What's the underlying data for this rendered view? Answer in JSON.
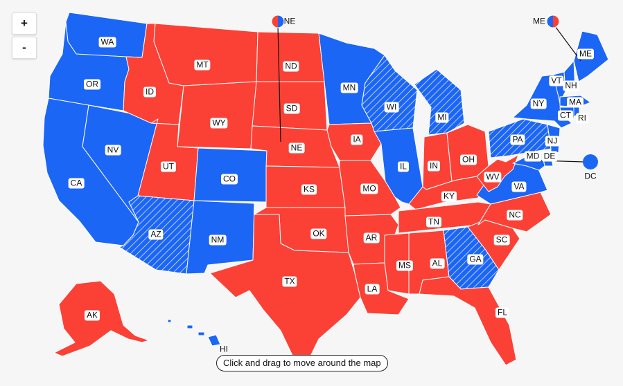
{
  "controls": {
    "zoom_in": "+",
    "zoom_out": "-"
  },
  "hint": "Click and drag to move around the map",
  "colors": {
    "dem": "#1c66f6",
    "rep": "#fb4136",
    "border": "#ffffff",
    "background": "#f6f6f6"
  },
  "states": [
    {
      "id": "WA",
      "party": "dem"
    },
    {
      "id": "OR",
      "party": "dem"
    },
    {
      "id": "CA",
      "party": "dem"
    },
    {
      "id": "NV",
      "party": "dem"
    },
    {
      "id": "ID",
      "party": "rep"
    },
    {
      "id": "MT",
      "party": "rep"
    },
    {
      "id": "WY",
      "party": "rep"
    },
    {
      "id": "UT",
      "party": "rep"
    },
    {
      "id": "CO",
      "party": "dem"
    },
    {
      "id": "AZ",
      "party": "dem",
      "hatched": true
    },
    {
      "id": "NM",
      "party": "dem"
    },
    {
      "id": "ND",
      "party": "rep"
    },
    {
      "id": "SD",
      "party": "rep"
    },
    {
      "id": "NE",
      "party": "rep"
    },
    {
      "id": "KS",
      "party": "rep"
    },
    {
      "id": "OK",
      "party": "rep"
    },
    {
      "id": "TX",
      "party": "rep"
    },
    {
      "id": "MN",
      "party": "dem"
    },
    {
      "id": "IA",
      "party": "rep"
    },
    {
      "id": "MO",
      "party": "rep"
    },
    {
      "id": "AR",
      "party": "rep"
    },
    {
      "id": "LA",
      "party": "rep"
    },
    {
      "id": "WI",
      "party": "dem",
      "hatched": true
    },
    {
      "id": "IL",
      "party": "dem"
    },
    {
      "id": "MI",
      "party": "dem",
      "hatched": true
    },
    {
      "id": "IN",
      "party": "rep"
    },
    {
      "id": "OH",
      "party": "rep"
    },
    {
      "id": "KY",
      "party": "rep"
    },
    {
      "id": "TN",
      "party": "rep"
    },
    {
      "id": "MS",
      "party": "rep"
    },
    {
      "id": "AL",
      "party": "rep"
    },
    {
      "id": "GA",
      "party": "dem",
      "hatched": true
    },
    {
      "id": "FL",
      "party": "rep"
    },
    {
      "id": "SC",
      "party": "rep"
    },
    {
      "id": "NC",
      "party": "rep"
    },
    {
      "id": "VA",
      "party": "dem"
    },
    {
      "id": "WV",
      "party": "rep"
    },
    {
      "id": "PA",
      "party": "dem",
      "hatched": true
    },
    {
      "id": "NY",
      "party": "dem"
    },
    {
      "id": "VT",
      "party": "dem"
    },
    {
      "id": "NH",
      "party": "dem"
    },
    {
      "id": "ME",
      "party": "dem"
    },
    {
      "id": "MA",
      "party": "dem"
    },
    {
      "id": "CT",
      "party": "dem"
    },
    {
      "id": "RI",
      "party": "dem"
    },
    {
      "id": "NJ",
      "party": "dem"
    },
    {
      "id": "DE",
      "party": "dem"
    },
    {
      "id": "MD",
      "party": "dem"
    },
    {
      "id": "AK",
      "party": "rep"
    },
    {
      "id": "HI",
      "party": "dem"
    }
  ],
  "split_markers": [
    {
      "id": "NE",
      "label": "NE"
    },
    {
      "id": "ME",
      "label": "ME"
    }
  ],
  "dc_marker": {
    "id": "DC",
    "label": "DC",
    "party": "dem"
  }
}
